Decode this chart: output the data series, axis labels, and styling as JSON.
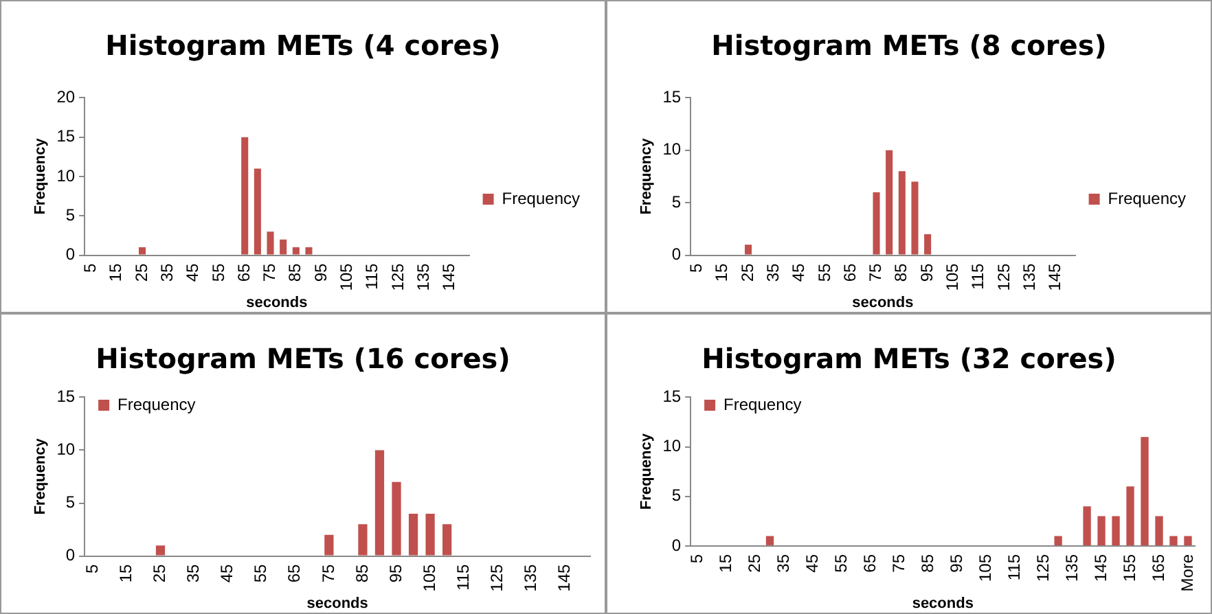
{
  "chart_data": [
    {
      "type": "bar",
      "title": "Histogram METs (4 cores)",
      "xlabel": "seconds",
      "ylabel": "Frequency",
      "categories": [
        "5",
        null,
        "15",
        null,
        "25",
        null,
        "35",
        null,
        "45",
        null,
        "55",
        null,
        "65",
        null,
        "75",
        null,
        "85",
        null,
        "95",
        null,
        "105",
        null,
        "115",
        null,
        "125",
        null,
        "135",
        null,
        "145",
        null
      ],
      "series": [
        {
          "name": "Frequency",
          "color": "#c0504d",
          "values": [
            0,
            0,
            0,
            0,
            1,
            0,
            0,
            0,
            0,
            0,
            0,
            0,
            15,
            11,
            3,
            2,
            1,
            1,
            0,
            0,
            0,
            0,
            0,
            0,
            0,
            0,
            0,
            0,
            0,
            0
          ]
        }
      ],
      "ylim": [
        0,
        20
      ],
      "yticks": [
        0,
        5,
        10,
        15,
        20
      ],
      "grid": false,
      "legend": "right"
    },
    {
      "type": "bar",
      "title": "Histogram METs (8 cores)",
      "xlabel": "seconds",
      "ylabel": "Frequency",
      "categories": [
        "5",
        null,
        "15",
        null,
        "25",
        null,
        "35",
        null,
        "45",
        null,
        "55",
        null,
        "65",
        null,
        "75",
        null,
        "85",
        null,
        "95",
        null,
        "105",
        null,
        "115",
        null,
        "125",
        null,
        "135",
        null,
        "145",
        null
      ],
      "series": [
        {
          "name": "Frequency",
          "color": "#c0504d",
          "values": [
            0,
            0,
            0,
            0,
            1,
            0,
            0,
            0,
            0,
            0,
            0,
            0,
            0,
            0,
            6,
            10,
            8,
            7,
            2,
            0,
            0,
            0,
            0,
            0,
            0,
            0,
            0,
            0,
            0,
            0
          ]
        }
      ],
      "ylim": [
        0,
        15
      ],
      "yticks": [
        0,
        5,
        10,
        15
      ],
      "grid": false,
      "legend": "right"
    },
    {
      "type": "bar",
      "title": "Histogram METs (16 cores)",
      "xlabel": "seconds",
      "ylabel": "Frequency",
      "categories": [
        "5",
        null,
        "15",
        null,
        "25",
        null,
        "35",
        null,
        "45",
        null,
        "55",
        null,
        "65",
        null,
        "75",
        null,
        "85",
        null,
        "95",
        null,
        "105",
        null,
        "115",
        null,
        "125",
        null,
        "135",
        null,
        "145",
        null
      ],
      "series": [
        {
          "name": "Frequency",
          "color": "#c0504d",
          "values": [
            0,
            0,
            0,
            0,
            1,
            0,
            0,
            0,
            0,
            0,
            0,
            0,
            0,
            0,
            2,
            0,
            3,
            10,
            7,
            4,
            4,
            3,
            0,
            0,
            0,
            0,
            0,
            0,
            0,
            0
          ]
        }
      ],
      "ylim": [
        0,
        15
      ],
      "yticks": [
        0,
        5,
        10,
        15
      ],
      "grid": false,
      "legend": "top left"
    },
    {
      "type": "bar",
      "title": "Histogram METs (32 cores)",
      "xlabel": "seconds",
      "ylabel": "Frequency",
      "categories": [
        "5",
        null,
        "15",
        null,
        "25",
        null,
        "35",
        null,
        "45",
        null,
        "55",
        null,
        "65",
        null,
        "75",
        null,
        "85",
        null,
        "95",
        null,
        "105",
        null,
        "115",
        null,
        "125",
        null,
        "135",
        null,
        "145",
        null,
        "155",
        null,
        "165",
        null,
        "More"
      ],
      "series": [
        {
          "name": "Frequency",
          "color": "#c0504d",
          "values": [
            0,
            0,
            0,
            0,
            0,
            1,
            0,
            0,
            0,
            0,
            0,
            0,
            0,
            0,
            0,
            0,
            0,
            0,
            0,
            0,
            0,
            0,
            0,
            0,
            0,
            1,
            0,
            4,
            3,
            3,
            6,
            11,
            3,
            1,
            1
          ]
        }
      ],
      "ylim": [
        0,
        15
      ],
      "yticks": [
        0,
        5,
        10,
        15
      ],
      "grid": false,
      "legend": "top left"
    }
  ]
}
